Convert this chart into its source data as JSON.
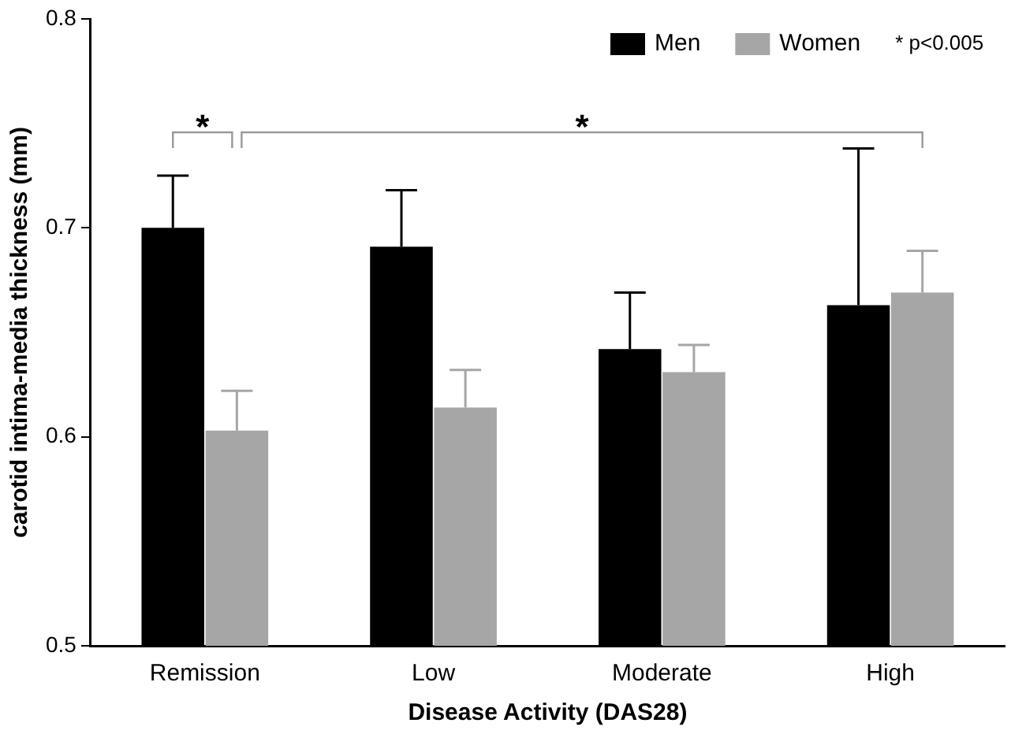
{
  "chart_data": {
    "type": "bar",
    "xlabel": "Disease Activity (DAS28)",
    "ylabel": "carotid intima-media thickness (mm)",
    "categories": [
      "Remission",
      "Low",
      "Moderate",
      "High"
    ],
    "series": [
      {
        "name": "Men",
        "color": "#000000",
        "values": [
          0.7,
          0.691,
          0.642,
          0.663
        ],
        "errors": [
          [
            0.7,
            0.725
          ],
          [
            0.691,
            0.718
          ],
          [
            0.642,
            0.669
          ],
          [
            0.663,
            0.738
          ]
        ]
      },
      {
        "name": "Women",
        "color": "#a6a6a6",
        "values": [
          0.603,
          0.614,
          0.631,
          0.669
        ],
        "errors": [
          [
            0.603,
            0.622
          ],
          [
            0.614,
            0.632
          ],
          [
            0.631,
            0.644
          ],
          [
            0.669,
            0.689
          ]
        ]
      }
    ],
    "ylim": [
      0.5,
      0.8
    ],
    "yticks": [
      0.5,
      0.6,
      0.7,
      0.8
    ],
    "grid": false,
    "legend": "top right",
    "annotations": [
      "*",
      "*",
      "* p<0.005"
    ]
  }
}
